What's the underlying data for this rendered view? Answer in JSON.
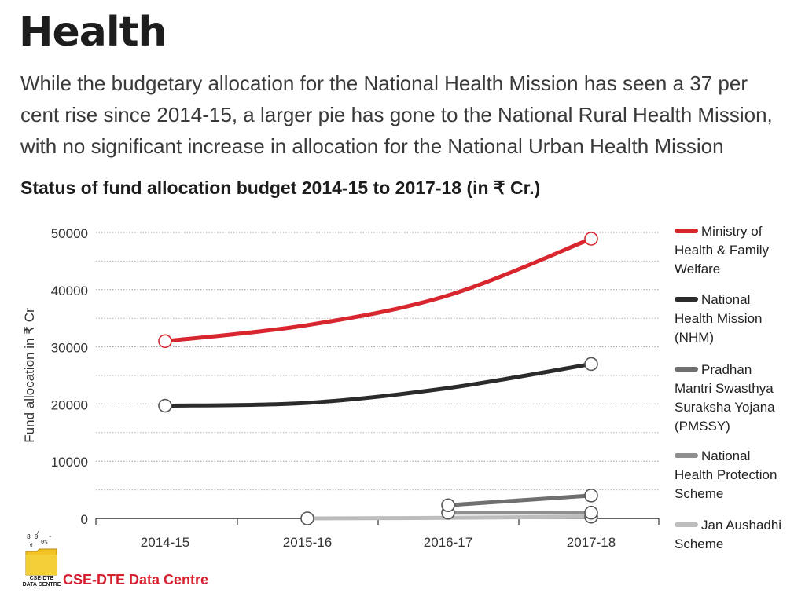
{
  "header": {
    "title": "Health",
    "subtitle": "While the budgetary allocation for the National Health Mission has seen a 37 per cent rise since 2014-15, a larger pie has gone to the National Rural Health Mission, with no significant increase in allocation for the National Urban Health Mission"
  },
  "chart_data": {
    "type": "line",
    "title": "Status of fund allocation budget 2014-15 to 2017-18 (in ₹ Cr.)",
    "xlabel": "",
    "ylabel": "Fund allocation in ₹ Cr",
    "categories": [
      "2014-15",
      "2015-16",
      "2016-17",
      "2017-18"
    ],
    "ylim": [
      0,
      50000
    ],
    "yticks": [
      0,
      10000,
      20000,
      30000,
      40000,
      50000
    ],
    "grid": "horizontal dotted",
    "legend_position": "right",
    "series": [
      {
        "name": "Ministry of Health & Family Welfare",
        "color": "#d7262e",
        "values": [
          31000,
          33800,
          39000,
          48900
        ],
        "markers": [
          0,
          3
        ]
      },
      {
        "name": "National Health Mission (NHM)",
        "color": "#2b2b2b",
        "values": [
          19700,
          20200,
          22800,
          27000
        ],
        "markers": [
          0,
          3
        ]
      },
      {
        "name": "Pradhan Mantri Swasthya Suraksha Yojana (PMSSY)",
        "color": "#6f6f6f",
        "values": [
          null,
          null,
          2300,
          4000
        ],
        "markers": [
          2,
          3
        ]
      },
      {
        "name": "National Health Protection Scheme",
        "color": "#8f8f8f",
        "values": [
          null,
          null,
          1000,
          1000
        ],
        "markers": [
          2,
          3
        ]
      },
      {
        "name": "Jan Aushadhi Scheme",
        "color": "#bdbdbd",
        "values": [
          null,
          0,
          100,
          300
        ],
        "markers": [
          1,
          3
        ]
      }
    ]
  },
  "legend": {
    "items": [
      {
        "lines": [
          "Ministry of",
          "Health & Family",
          "Welfare"
        ]
      },
      {
        "lines": [
          "National",
          "Health Mission",
          "(NHM)"
        ]
      },
      {
        "lines": [
          "Pradhan",
          "Mantri Swasthya",
          "Suraksha Yojana",
          "(PMSSY)"
        ]
      },
      {
        "lines": [
          "National",
          "Health Protection",
          "Scheme"
        ]
      },
      {
        "lines": [
          "Jan Aushadhi",
          "Scheme"
        ]
      }
    ]
  },
  "footer": {
    "source_label": "CSE-DTE Data Centre",
    "logo_text": "CSE-DTE DATA CENTRE",
    "logo_icon": "folder-data-icon"
  }
}
